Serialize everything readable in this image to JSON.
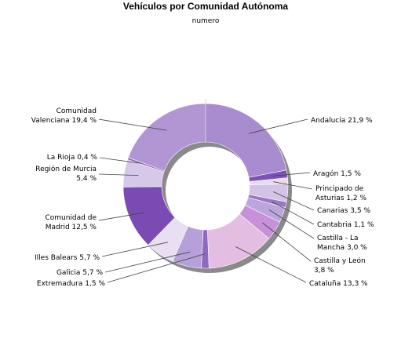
{
  "chart_data": {
    "type": "pie",
    "style": "donut",
    "title": "Vehículos por Comunidad Autónoma",
    "subtitle": "numero",
    "legend": "none",
    "slices": [
      {
        "name": "Andalucía",
        "value": 21.9,
        "label": [
          "Andalucía 21,9 %"
        ],
        "color": "#a98bd0"
      },
      {
        "name": "Aragón",
        "value": 1.5,
        "label": [
          "Aragón 1,5 %"
        ],
        "color": "#7b52b8"
      },
      {
        "name": "Principado de Asturias",
        "value": 1.2,
        "label": [
          "Principado de",
          "Asturias 1,2 %"
        ],
        "color": "#e6dcf1"
      },
      {
        "name": "Canarias",
        "value": 3.5,
        "label": [
          "Canarias 3,5 %"
        ],
        "color": "#d3c3e6"
      },
      {
        "name": "Cantabria",
        "value": 1.1,
        "label": [
          "Cantabria 1,1 %"
        ],
        "color": "#9a76c5"
      },
      {
        "name": "Castilla - La Mancha",
        "value": 3.0,
        "label": [
          "Castilla - La",
          "Mancha 3,0 %"
        ],
        "color": "#bca5dc"
      },
      {
        "name": "Castilla y León",
        "value": 3.8,
        "label": [
          "Castilla y León",
          "3,8 %"
        ],
        "color": "#c890d8"
      },
      {
        "name": "Cataluña",
        "value": 13.3,
        "label": [
          "Cataluña 13,3 %"
        ],
        "color": "#e4bde2"
      },
      {
        "name": "Extremadura",
        "value": 1.5,
        "label": [
          "Extremadura 1,5 %"
        ],
        "color": "#8f68c0"
      },
      {
        "name": "Galicia",
        "value": 5.7,
        "label": [
          "Galicia 5,7 %"
        ],
        "color": "#b7a0d9"
      },
      {
        "name": "Illes Balears",
        "value": 5.7,
        "label": [
          "Illes Balears 5,7 %"
        ],
        "color": "#e8e0f2"
      },
      {
        "name": "Comunidad de Madrid",
        "value": 12.5,
        "label": [
          "Comunidad de",
          "Madrid 12,5 %"
        ],
        "color": "#7c4ab3"
      },
      {
        "name": "Región de Murcia",
        "value": 5.4,
        "label": [
          "Región de Murcia",
          "5,4 %"
        ],
        "color": "#d6c8e8"
      },
      {
        "name": "La Rioja",
        "value": 0.4,
        "label": [
          "La Rioja 0,4 %"
        ],
        "color": "#8b63bf"
      },
      {
        "name": "Comunidad Valenciana",
        "value": 19.4,
        "label": [
          "Comunidad",
          "Valenciana 19,4 %"
        ],
        "color": "#b196d3"
      }
    ]
  }
}
